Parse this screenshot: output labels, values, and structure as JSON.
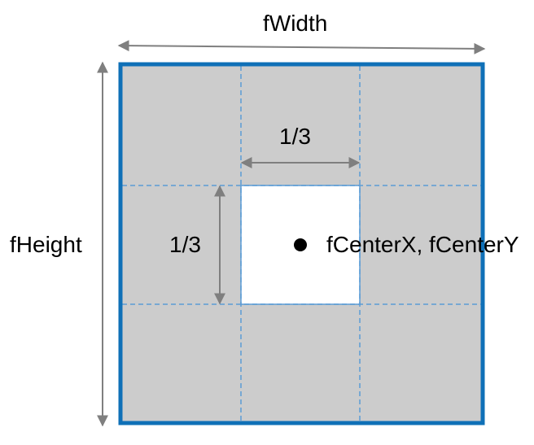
{
  "labels": {
    "width": "fWidth",
    "height": "fHeight",
    "third_horizontal": "1/3",
    "third_vertical": "1/3",
    "center": "fCenterX, fCenterY"
  },
  "grid": {
    "rows": 3,
    "cols": 3,
    "highlighted_cell": "center"
  },
  "colors": {
    "frame_border": "#0f70b7",
    "cell_fill": "#cccccc",
    "center_fill": "#ffffff",
    "grid_dash": "#5b9bd5",
    "arrow": "#7f7f7f",
    "center_dot": "#000000"
  }
}
